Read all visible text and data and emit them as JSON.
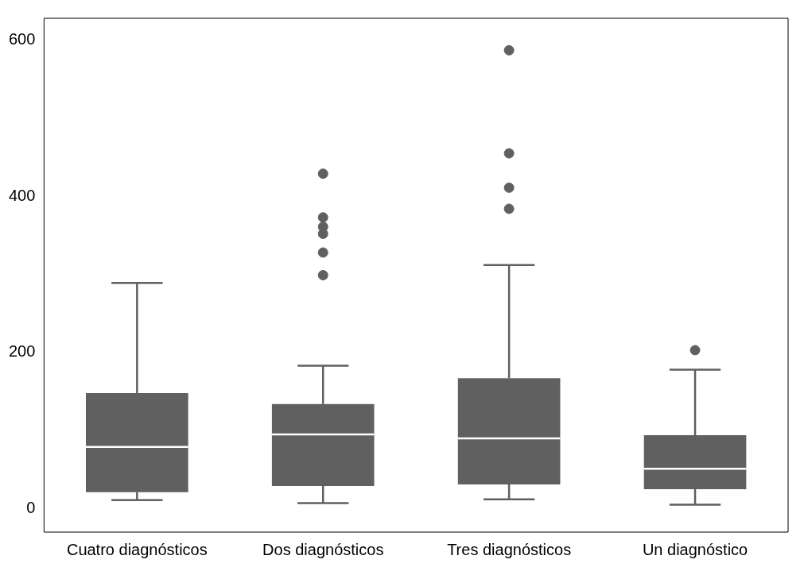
{
  "chart_data": {
    "type": "box",
    "categories": [
      "Cuatro diagnósticos",
      "Dos diagnósticos",
      "Tres diagnósticos",
      "Un diagnóstico"
    ],
    "color": "#606060",
    "boxes": [
      {
        "low": 11,
        "q1": 21,
        "median": 79,
        "q3": 148,
        "high": 289
      },
      {
        "low": 7,
        "q1": 29,
        "median": 95,
        "q3": 134,
        "high": 183,
        "outliers": [
          299,
          328,
          352,
          361,
          373,
          429
        ]
      },
      {
        "low": 12,
        "q1": 31,
        "median": 90,
        "q3": 167,
        "high": 312,
        "outliers": [
          384,
          411,
          455,
          587
        ]
      },
      {
        "low": 5,
        "q1": 25,
        "median": 51,
        "q3": 94,
        "high": 178,
        "outliers": [
          203
        ]
      }
    ],
    "ylim": [
      -30,
      628
    ],
    "yticks": [
      0,
      200,
      400,
      600
    ],
    "grid": false,
    "legend": false
  }
}
